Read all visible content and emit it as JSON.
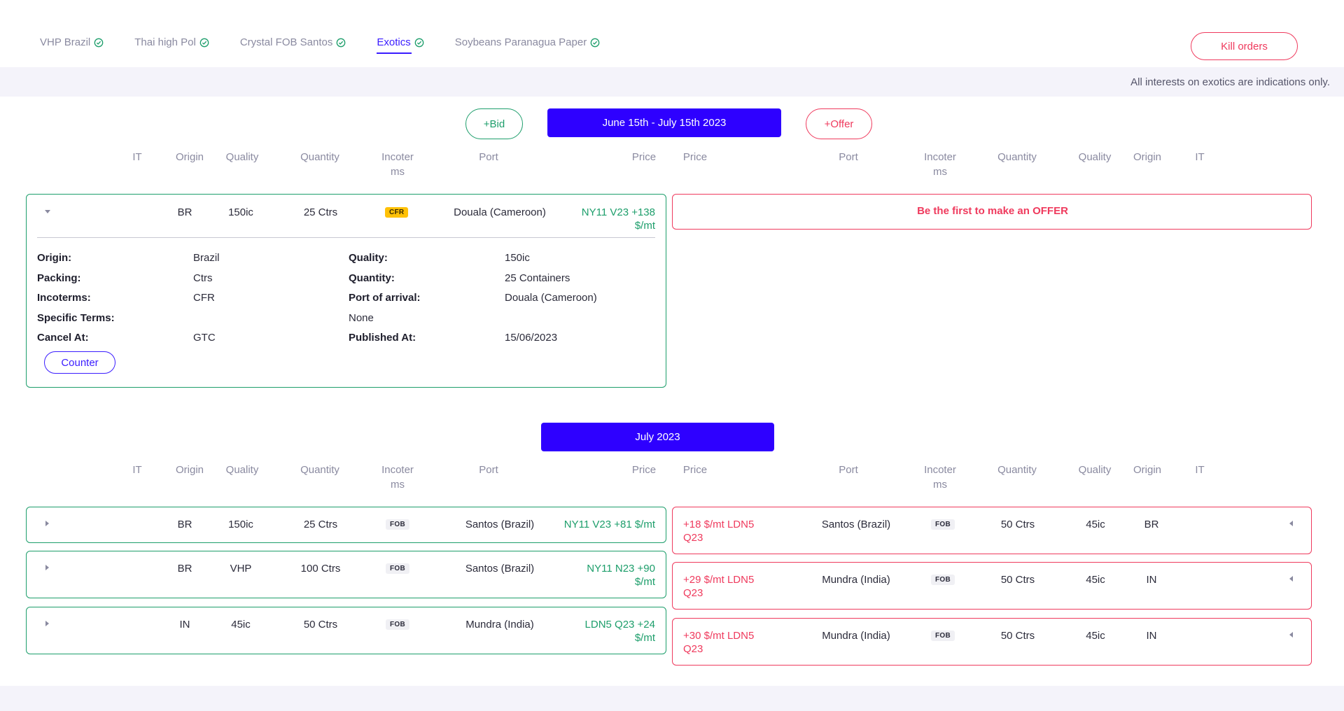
{
  "tabs": [
    {
      "label": "VHP Brazil"
    },
    {
      "label": "Thai high Pol"
    },
    {
      "label": "Crystal FOB Santos"
    },
    {
      "label": "Exotics"
    },
    {
      "label": "Soybeans Paranagua Paper"
    }
  ],
  "kill_orders_label": "Kill orders",
  "notice": "All interests on exotics are indications only.",
  "bid_label": "+Bid",
  "offer_label": "+Offer",
  "bid_header": {
    "it": "IT",
    "origin": "Origin",
    "quality": "Quality",
    "quantity": "Quantity",
    "incoterms_1": "Incoter",
    "incoterms_2": "ms",
    "port": "Port",
    "price": "Price"
  },
  "offer_header": {
    "price": "Price",
    "port": "Port",
    "incoterms_1": "Incoter",
    "incoterms_2": "ms",
    "quantity": "Quantity",
    "quality": "Quality",
    "origin": "Origin",
    "it": "IT"
  },
  "period1": {
    "label": "June 15th - July 15th 2023",
    "bid": {
      "origin": "BR",
      "quality": "150ic",
      "quantity": "25 Ctrs",
      "incoterm": "CFR",
      "port": "Douala (Cameroon)",
      "price_line1": "NY11 V23  +138",
      "price_line2": "$/mt"
    },
    "details": {
      "origin_label": "Origin:",
      "origin_value": "Brazil",
      "packing_label": "Packing:",
      "packing_value": "Ctrs",
      "incoterms_label": "Incoterms:",
      "incoterms_value": "CFR",
      "specific_terms_label": "Specific Terms:",
      "specific_terms_value": "None",
      "cancel_at_label": "Cancel At:",
      "cancel_at_value": "GTC",
      "quality_label": "Quality:",
      "quality_value": "150ic",
      "quantity_label": "Quantity:",
      "quantity_value": "25 Containers",
      "port_label": "Port of arrival:",
      "port_value": "Douala (Cameroon)",
      "published_label": "Published At:",
      "published_value": "15/06/2023",
      "counter_label": "Counter"
    },
    "empty_offer": "Be the first to make an OFFER"
  },
  "period2": {
    "label": "July 2023",
    "bids": [
      {
        "origin": "BR",
        "quality": "150ic",
        "quantity": "25 Ctrs",
        "incoterm": "FOB",
        "port": "Santos (Brazil)",
        "price_line1": "NY11 V23  +81 $/mt",
        "price_line2": ""
      },
      {
        "origin": "BR",
        "quality": "VHP",
        "quantity": "100 Ctrs",
        "incoterm": "FOB",
        "port": "Santos (Brazil)",
        "price_line1": "NY11 N23  +90",
        "price_line2": "$/mt"
      },
      {
        "origin": "IN",
        "quality": "45ic",
        "quantity": "50 Ctrs",
        "incoterm": "FOB",
        "port": "Mundra (India)",
        "price_line1": "LDN5 Q23  +24",
        "price_line2": "$/mt"
      }
    ],
    "offers": [
      {
        "price_line1": "+18 $/mt  LDN5",
        "price_line2": "Q23",
        "port": "Santos (Brazil)",
        "incoterm": "FOB",
        "quantity": "50 Ctrs",
        "quality": "45ic",
        "origin": "BR"
      },
      {
        "price_line1": "+29 $/mt  LDN5",
        "price_line2": "Q23",
        "port": "Mundra (India)",
        "incoterm": "FOB",
        "quantity": "50 Ctrs",
        "quality": "45ic",
        "origin": "IN"
      },
      {
        "price_line1": "+30 $/mt  LDN5",
        "price_line2": "Q23",
        "port": "Mundra (India)",
        "incoterm": "FOB",
        "quantity": "50 Ctrs",
        "quality": "45ic",
        "origin": "IN"
      }
    ]
  },
  "colors": {
    "accent": "#2e00ff",
    "bid": "#1d9e6b",
    "offer": "#ef3a5d",
    "cfr_badge": "#ffc107"
  }
}
